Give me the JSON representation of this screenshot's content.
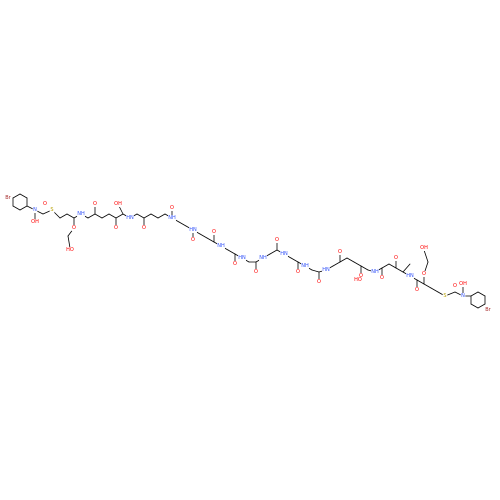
{
  "diagram": {
    "type": "chemical-structure",
    "colors": {
      "bond": "#000000",
      "oxygen": "#ff0000",
      "nitrogen": "#3050f8",
      "sulfur": "#b8a000",
      "bromine": "#a52a2a"
    },
    "atom_labels": {
      "Br": "Br",
      "S": "S",
      "O": "O",
      "N": "N",
      "OH": "OH",
      "HO": "HO",
      "NH": "NH",
      "HN": "HN"
    }
  }
}
